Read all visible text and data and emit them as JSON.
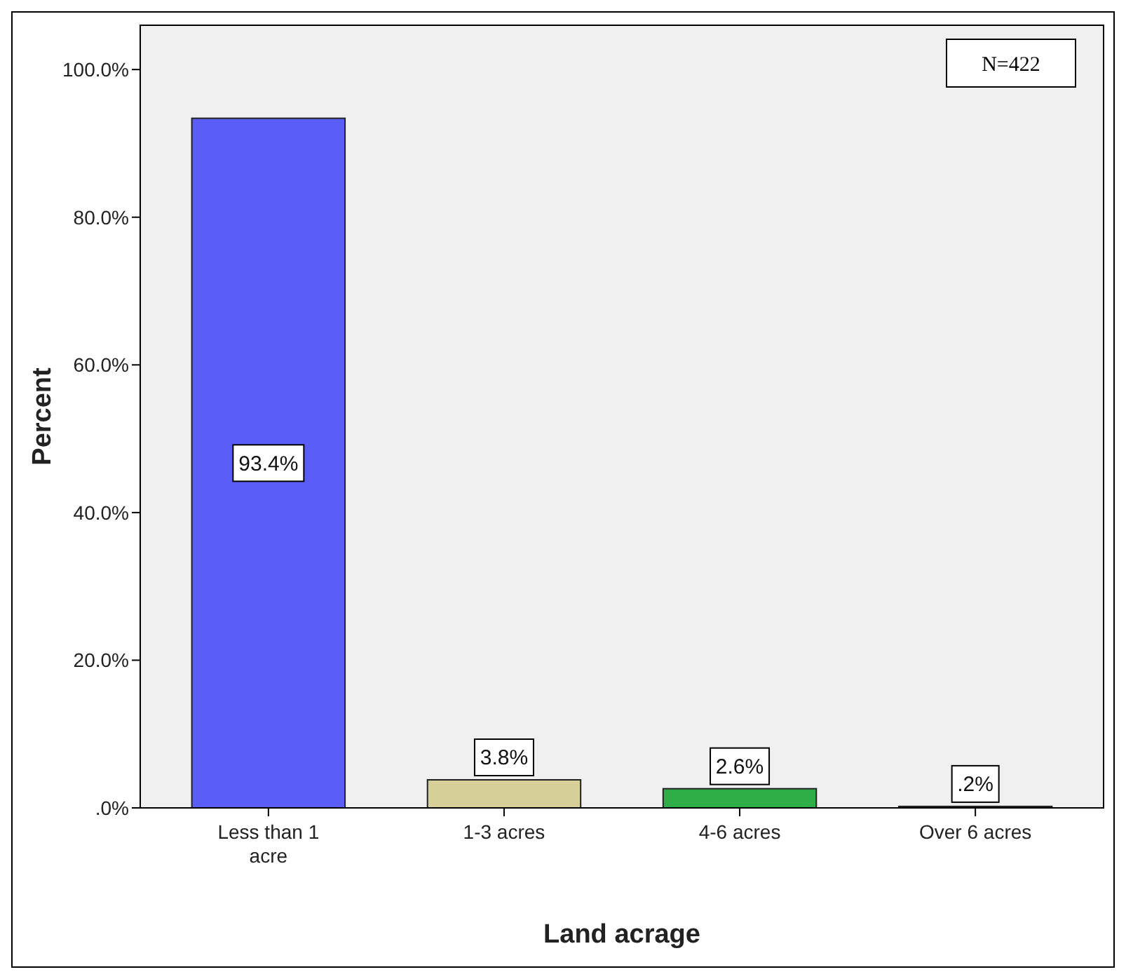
{
  "chart_data": {
    "type": "bar",
    "xlabel": "Land acrage",
    "ylabel": "Percent",
    "categories": [
      "Less than 1 acre",
      "1-3 acres",
      "4-6 acres",
      "Over 6 acres"
    ],
    "values": [
      93.4,
      3.8,
      2.6,
      0.2
    ],
    "colors": [
      "#5b5ef6",
      "#d6cf98",
      "#2fae47",
      "#1a1a1a"
    ],
    "value_labels": [
      "93.4%",
      "3.8%",
      "2.6%",
      ".2%"
    ],
    "ylim": [
      0,
      106
    ],
    "yticks": [
      {
        "value": 0,
        "label": ".0%"
      },
      {
        "value": 20,
        "label": "20.0%"
      },
      {
        "value": 40,
        "label": "40.0%"
      },
      {
        "value": 60,
        "label": "60.0%"
      },
      {
        "value": 80,
        "label": "80.0%"
      },
      {
        "value": 100,
        "label": "100.0%"
      }
    ],
    "annotations": [
      "N=422"
    ],
    "grid": false
  }
}
